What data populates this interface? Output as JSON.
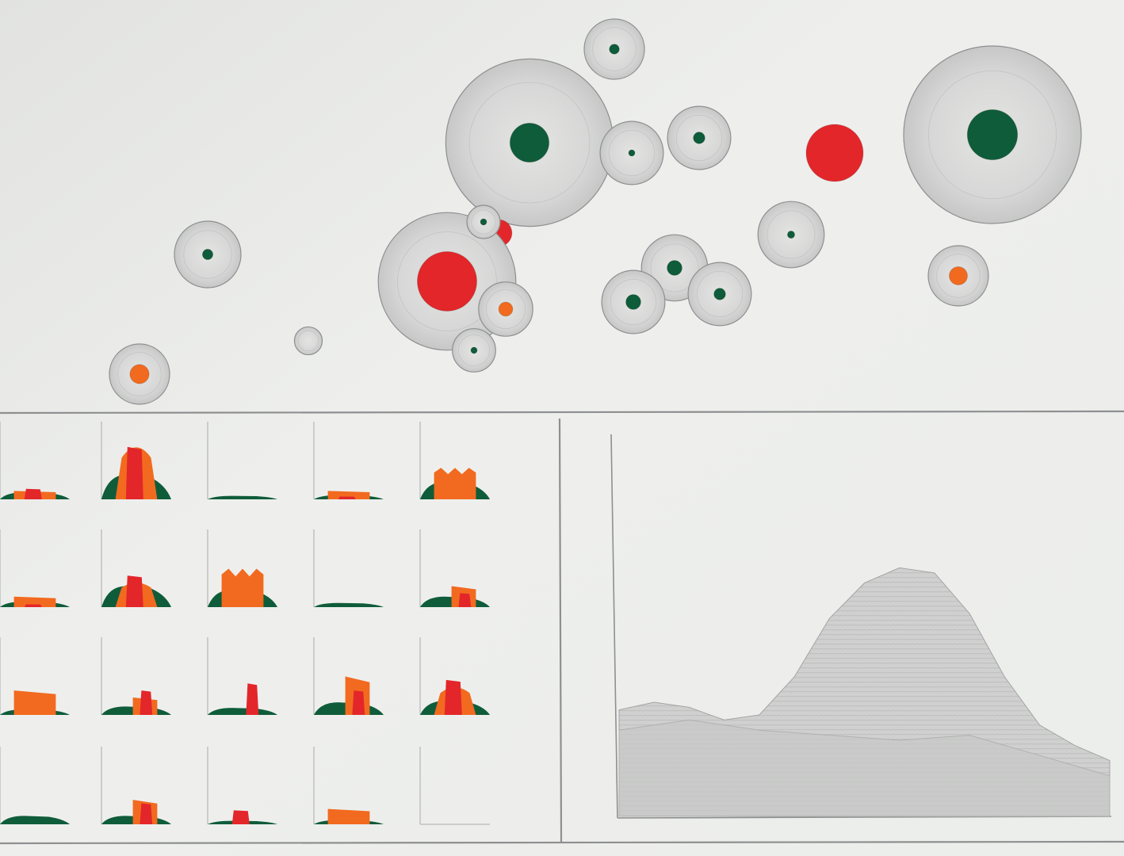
{
  "palette": {
    "paper": "#ecedeb",
    "pencil": "#8e8f90",
    "halo_fill": "#d3d4d3",
    "green": "#0f5c3a",
    "red": "#e3262a",
    "orange": "#f26a1f"
  },
  "bubbles": [
    {
      "id": "bubble-1",
      "color": "green",
      "core": 0.3,
      "halo": 1.0
    },
    {
      "id": "bubble-2",
      "color": "green",
      "core": 0.7,
      "halo": 1.65
    },
    {
      "id": "bubble-3",
      "color": "green",
      "core": 0.18,
      "halo": 1.05
    },
    {
      "id": "bubble-4",
      "color": "green",
      "core": 0.35,
      "halo": 1.05
    },
    {
      "id": "bubble-5",
      "color": "red",
      "core": 1.0,
      "halo": 1.0
    },
    {
      "id": "bubble-6",
      "color": "green",
      "core": 0.9,
      "halo": 1.75
    },
    {
      "id": "bubble-7",
      "color": "green",
      "core": 0.3,
      "halo": 1.05
    },
    {
      "id": "bubble-8",
      "color": "red",
      "core": 0.65,
      "halo": 1.0
    },
    {
      "id": "bubble-9",
      "color": "green",
      "core": 0.45,
      "halo": 1.1
    },
    {
      "id": "bubble-10",
      "color": "green",
      "core": 0.22,
      "halo": 1.1
    },
    {
      "id": "bubble-11",
      "color": "red",
      "core": 1.1,
      "halo": 1.4
    },
    {
      "id": "bubble-12",
      "color": "green",
      "core": 0.2,
      "halo": 1.05
    },
    {
      "id": "bubble-13",
      "color": "green",
      "core": 0.45,
      "halo": 1.05
    },
    {
      "id": "bubble-14",
      "color": "green",
      "core": 0.35,
      "halo": 1.05
    },
    {
      "id": "bubble-15",
      "color": "orange",
      "core": 0.45,
      "halo": 0.95
    },
    {
      "id": "bubble-16",
      "color": "orange",
      "core": 0.55,
      "halo": 1.0
    },
    {
      "id": "bubble-17",
      "color": "none",
      "core": 0.0,
      "halo": 0.65
    },
    {
      "id": "bubble-18",
      "color": "green",
      "core": 0.2,
      "halo": 0.7
    },
    {
      "id": "bubble-19",
      "color": "orange",
      "core": 0.55,
      "halo": 0.95
    }
  ],
  "small_multiples": {
    "rows": 4,
    "columns": 5,
    "cells": [
      {
        "name": "mini-1",
        "green": 0.1,
        "red": 0.15,
        "orange": 0.12,
        "shape": "flat"
      },
      {
        "name": "mini-2",
        "green": 0.35,
        "red": 0.75,
        "orange": 0.85,
        "shape": "peak"
      },
      {
        "name": "mini-3",
        "green": 0.05,
        "red": 0.0,
        "orange": 0.0,
        "shape": "flat"
      },
      {
        "name": "mini-4",
        "green": 0.06,
        "red": 0.04,
        "orange": 0.12,
        "shape": "flat"
      },
      {
        "name": "mini-5",
        "green": 0.25,
        "red": 0.0,
        "orange": 0.45,
        "shape": "crown"
      },
      {
        "name": "mini-6",
        "green": 0.08,
        "red": 0.04,
        "orange": 0.15,
        "shape": "flat"
      },
      {
        "name": "mini-7",
        "green": 0.3,
        "red": 0.45,
        "orange": 0.4,
        "shape": "peak"
      },
      {
        "name": "mini-8",
        "green": 0.25,
        "red": 0.0,
        "orange": 0.55,
        "shape": "crown"
      },
      {
        "name": "mini-9",
        "green": 0.06,
        "red": 0.0,
        "orange": 0.0,
        "shape": "flat"
      },
      {
        "name": "mini-10",
        "green": 0.15,
        "red": 0.2,
        "orange": 0.3,
        "shape": "tail"
      },
      {
        "name": "mini-11",
        "green": 0.08,
        "red": 0.0,
        "orange": 0.35,
        "shape": "flat"
      },
      {
        "name": "mini-12",
        "green": 0.12,
        "red": 0.35,
        "orange": 0.25,
        "shape": "tail"
      },
      {
        "name": "mini-13",
        "green": 0.1,
        "red": 0.45,
        "orange": 0.0,
        "shape": "tail"
      },
      {
        "name": "mini-14",
        "green": 0.18,
        "red": 0.35,
        "orange": 0.55,
        "shape": "tail"
      },
      {
        "name": "mini-15",
        "green": 0.2,
        "red": 0.5,
        "orange": 0.45,
        "shape": "peak"
      },
      {
        "name": "mini-16",
        "green": 0.12,
        "red": 0.0,
        "orange": 0.0,
        "shape": "flat"
      },
      {
        "name": "mini-17",
        "green": 0.12,
        "red": 0.3,
        "orange": 0.35,
        "shape": "tail"
      },
      {
        "name": "mini-18",
        "green": 0.05,
        "red": 0.2,
        "orange": 0.0,
        "shape": "flat"
      },
      {
        "name": "mini-19",
        "green": 0.06,
        "red": 0.0,
        "orange": 0.22,
        "shape": "flat"
      },
      {
        "name": "mini-20",
        "green": 0.0,
        "red": 0.0,
        "orange": 0.0,
        "shape": "empty"
      }
    ]
  },
  "area_chart": {
    "back_series": [
      0.42,
      0.45,
      0.43,
      0.38,
      0.4,
      0.55,
      0.78,
      0.92,
      0.98,
      0.96,
      0.8,
      0.55,
      0.36,
      0.28,
      0.22
    ],
    "front_series": [
      0.34,
      0.36,
      0.38,
      0.36,
      0.34,
      0.33,
      0.32,
      0.31,
      0.3,
      0.31,
      0.32,
      0.28,
      0.24,
      0.2,
      0.16
    ]
  }
}
